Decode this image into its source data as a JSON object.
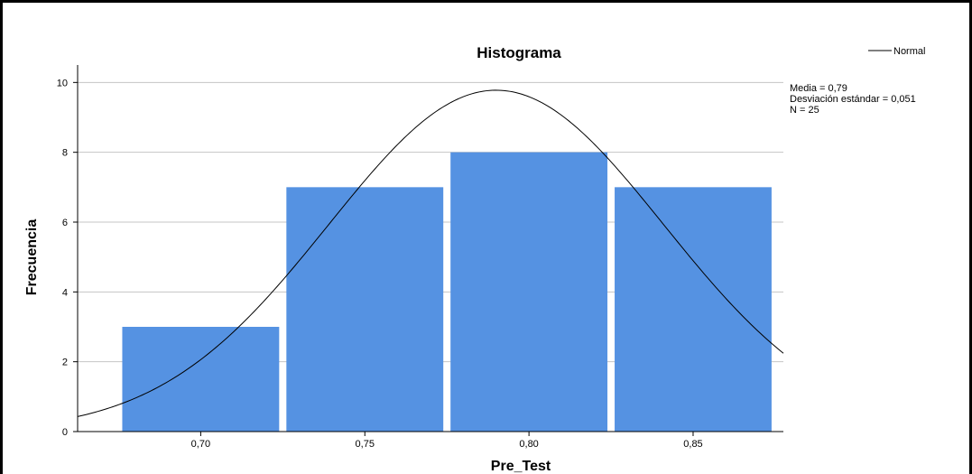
{
  "chart_data": {
    "type": "bar",
    "title": "Histograma",
    "xlabel": "Pre_Test",
    "ylabel": "Frecuencia",
    "categories": [
      "0,70",
      "0,75",
      "0,80",
      "0,85"
    ],
    "values": [
      3,
      7,
      8,
      7
    ],
    "bin_width": 0.05,
    "bin_centers": [
      0.7,
      0.75,
      0.8,
      0.85
    ],
    "ylim": [
      0,
      10.5
    ],
    "yticks": [
      0,
      2,
      4,
      6,
      8,
      10
    ],
    "xticks": [
      "0,70",
      "0,75",
      "0,80",
      "0,85"
    ],
    "xlim": [
      0.6625,
      0.8775
    ],
    "grid": true,
    "bar_color": "#5592E2",
    "curve": {
      "type": "normal",
      "mean": 0.79,
      "sd": 0.051,
      "n": 25,
      "color": "#000000"
    },
    "legend": {
      "entries": [
        {
          "name": "Normal",
          "style": "line"
        }
      ],
      "placement": "top-right"
    },
    "stats": {
      "mean_label": "Media = 0,79",
      "sd_label": "Desviación estándar = 0,051",
      "n_label": "N = 25"
    }
  }
}
